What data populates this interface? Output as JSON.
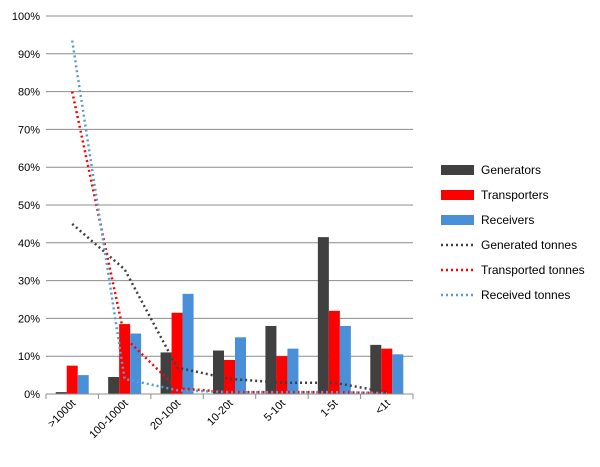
{
  "chart_data": {
    "type": "bar",
    "categories": [
      ">1000t",
      "100-1000t",
      "20-100t",
      "10-20t",
      "5-10t",
      "1-5t",
      "<1t"
    ],
    "y_ticks": [
      "0%",
      "10%",
      "20%",
      "30%",
      "40%",
      "50%",
      "60%",
      "70%",
      "80%",
      "90%",
      "100%"
    ],
    "ylim": [
      0,
      100
    ],
    "grid": true,
    "legend_position": "right",
    "bar_series": [
      {
        "name": "Generators",
        "color": "#404040",
        "values": [
          0.5,
          4.5,
          11,
          11.5,
          18,
          41.5,
          13
        ]
      },
      {
        "name": "Transporters",
        "color": "#ff0000",
        "values": [
          7.5,
          18.5,
          21.5,
          9,
          10,
          22,
          12
        ]
      },
      {
        "name": "Receivers",
        "color": "#4a90d9",
        "values": [
          5,
          16,
          26.5,
          15,
          12,
          18,
          10.5
        ]
      }
    ],
    "line_series": [
      {
        "name": "Generated tonnes",
        "color": "#404040",
        "style": "dotted",
        "values": [
          45,
          33,
          7,
          4,
          3,
          3,
          0.5
        ]
      },
      {
        "name": "Transported tonnes",
        "color": "#ff0000",
        "style": "dotted",
        "values": [
          80,
          15,
          1.5,
          0.5,
          0.5,
          0.5,
          0.2
        ]
      },
      {
        "name": "Received tonnes",
        "color": "#5b9bd5",
        "style": "dotted",
        "values": [
          93.5,
          4,
          1,
          0.5,
          0.5,
          0.5,
          0.2
        ]
      }
    ]
  }
}
